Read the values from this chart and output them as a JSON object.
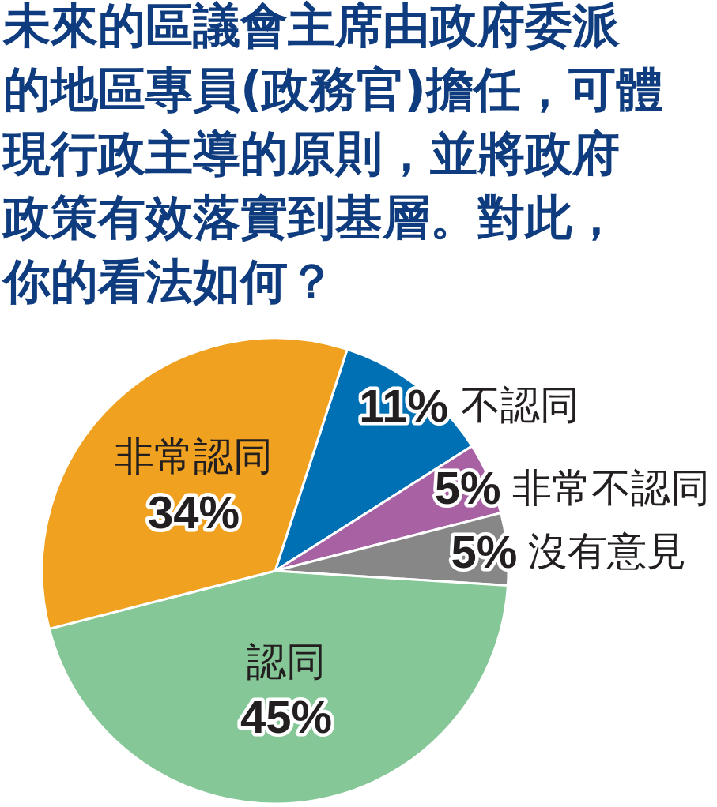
{
  "chart_data": {
    "type": "pie",
    "title": "未來的區議會主席由政府委派的地區專員(政務官)擔任，可體現行政主導的原則，並將政府政策有效落實到基層。對此，你的看法如何？",
    "categories": [
      "不認同",
      "非常不認同",
      "沒有意見",
      "認同",
      "非常認同"
    ],
    "values": [
      11,
      5,
      5,
      45,
      34
    ],
    "value_labels": [
      "11%",
      "5%",
      "5%",
      "45%",
      "34%"
    ],
    "colors": [
      "#0070b5",
      "#a862a4",
      "#878787",
      "#86c797",
      "#f0a11f"
    ]
  }
}
